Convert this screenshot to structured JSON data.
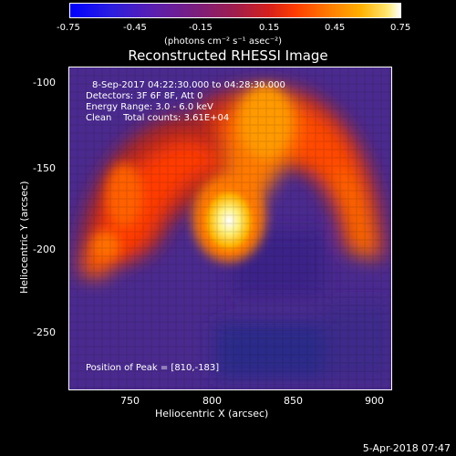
{
  "colorbar": {
    "ticks": [
      "-0.75",
      "-0.45",
      "-0.15",
      "0.15",
      "0.45",
      "0.75"
    ],
    "units": "(photons cm⁻² s⁻¹ asec⁻²)"
  },
  "title": "Reconstructed RHESSI Image",
  "annotations": {
    "time_range": "8-Sep-2017 04:22:30.000 to 04:28:30.000",
    "detectors": "Detectors: 3F 6F 8F, Att 0",
    "energy": "Energy Range: 3.0 - 6.0 keV",
    "method": "Clean    Total counts: 3.61E+04",
    "peak": "Position of Peak = [810,-183]"
  },
  "axes": {
    "xlabel": "Heliocentric X (arcsec)",
    "ylabel": "Heliocentric Y (arcsec)",
    "xticks": [
      "750",
      "800",
      "850",
      "900"
    ],
    "yticks": [
      "-100",
      "-150",
      "-200",
      "-250"
    ]
  },
  "timestamp": "5-Apr-2018 07:47"
}
